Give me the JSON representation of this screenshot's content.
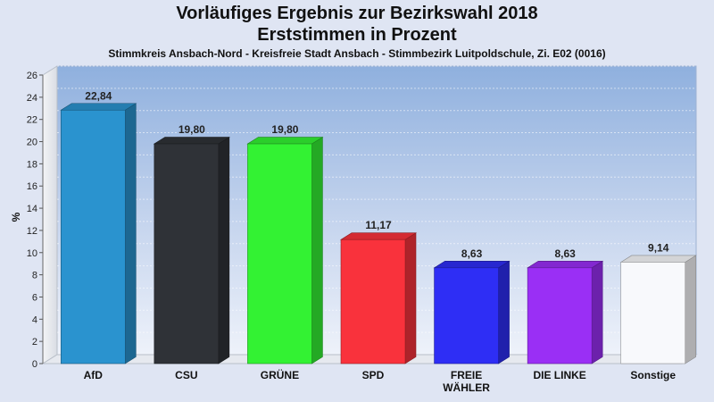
{
  "header": {
    "title_line1": "Vorläufiges Ergebnis zur Bezirkswahl 2018",
    "title_line2": "Erststimmen in Prozent",
    "subtitle": "Stimmkreis Ansbach-Nord - Kreisfreie Stadt Ansbach - Stimmbezirk Luitpoldschule, Zi. E02 (0016)"
  },
  "chart_data": {
    "type": "bar",
    "title": "Vorläufiges Ergebnis zur Bezirkswahl 2018 / Erststimmen in Prozent",
    "ylabel": "%",
    "xlabel": "",
    "ylim": [
      0,
      26
    ],
    "yticks": [
      0,
      2,
      4,
      6,
      8,
      10,
      12,
      14,
      16,
      18,
      20,
      22,
      24,
      26
    ],
    "grid": true,
    "categories": [
      "AfD",
      "CSU",
      "GRÜNE",
      "SPD",
      "FREIE WÄHLER",
      "DIE LINKE",
      "Sonstige"
    ],
    "category_lines": [
      [
        "AfD"
      ],
      [
        "CSU"
      ],
      [
        "GRÜNE"
      ],
      [
        "SPD"
      ],
      [
        "FREIE",
        "WÄHLER"
      ],
      [
        "DIE LINKE"
      ],
      [
        "Sonstige"
      ]
    ],
    "values": [
      22.84,
      19.8,
      19.8,
      11.17,
      8.63,
      8.63,
      9.14
    ],
    "value_labels": [
      "22,84",
      "19,80",
      "19,80",
      "11,17",
      "8,63",
      "8,63",
      "9,14"
    ],
    "colors": [
      "#2a93cf",
      "#2f3237",
      "#33f233",
      "#f9323c",
      "#2e2ef5",
      "#9a2ff5",
      "#f8f9fc"
    ]
  }
}
